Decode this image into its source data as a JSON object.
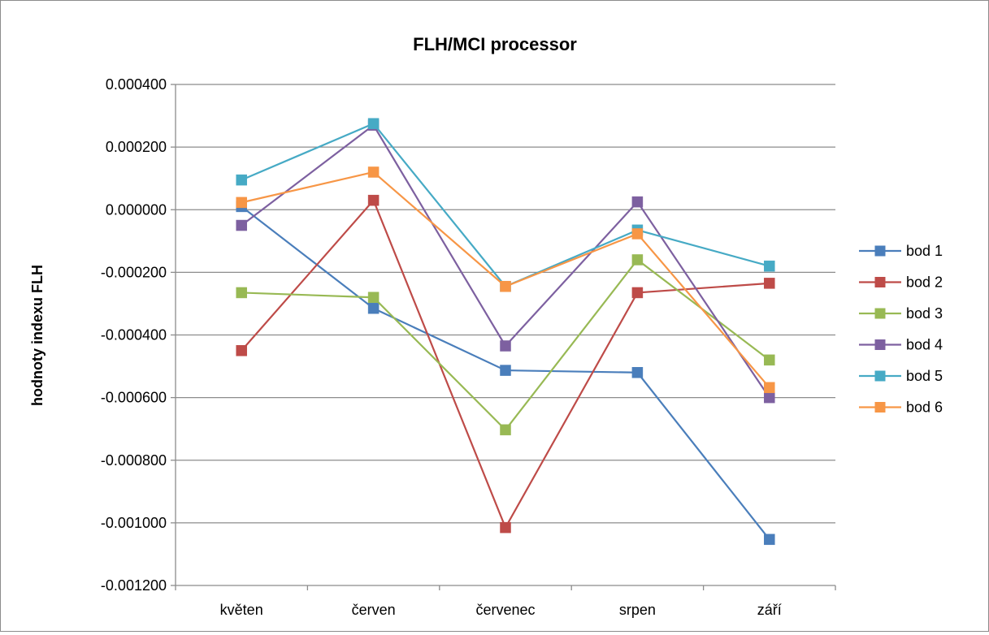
{
  "chart_data": {
    "type": "line",
    "title": "FLH/MCI processor",
    "xlabel": "",
    "ylabel": "hodnoty indexu FLH",
    "categories": [
      "květen",
      "červen",
      "červenec",
      "srpen",
      "září"
    ],
    "ylim": [
      -0.0012,
      0.0004
    ],
    "yticks": [
      0.0004,
      0.0002,
      0.0,
      -0.0002,
      -0.0004,
      -0.0006,
      -0.0008,
      -0.001,
      -0.0012
    ],
    "yticklabels": [
      "0.000400",
      "0.000200",
      "0.000000",
      "-0.000200",
      "-0.000400",
      "-0.000600",
      "-0.000800",
      "-0.001000",
      "-0.001200"
    ],
    "grid": true,
    "legend": "right",
    "series": [
      {
        "name": "bod 1",
        "color": "#4a7ebb",
        "values": [
          1e-05,
          -0.000315,
          -0.000513,
          -0.00052,
          -0.001053
        ]
      },
      {
        "name": "bod 2",
        "color": "#be4b48",
        "values": [
          -0.00045,
          3e-05,
          -0.001015,
          -0.000265,
          -0.000235
        ]
      },
      {
        "name": "bod 3",
        "color": "#98b954",
        "values": [
          -0.000265,
          -0.00028,
          -0.000703,
          -0.00016,
          -0.00048
        ]
      },
      {
        "name": "bod 4",
        "color": "#7d60a0",
        "values": [
          -5e-05,
          0.00027,
          -0.000435,
          2.5e-05,
          -0.0006
        ]
      },
      {
        "name": "bod 5",
        "color": "#46aac5",
        "values": [
          9.5e-05,
          0.000275,
          -0.000245,
          -6.5e-05,
          -0.00018
        ]
      },
      {
        "name": "bod 6",
        "color": "#f79646",
        "values": [
          2.3e-05,
          0.00012,
          -0.000245,
          -7.7e-05,
          -0.000568
        ]
      }
    ]
  }
}
